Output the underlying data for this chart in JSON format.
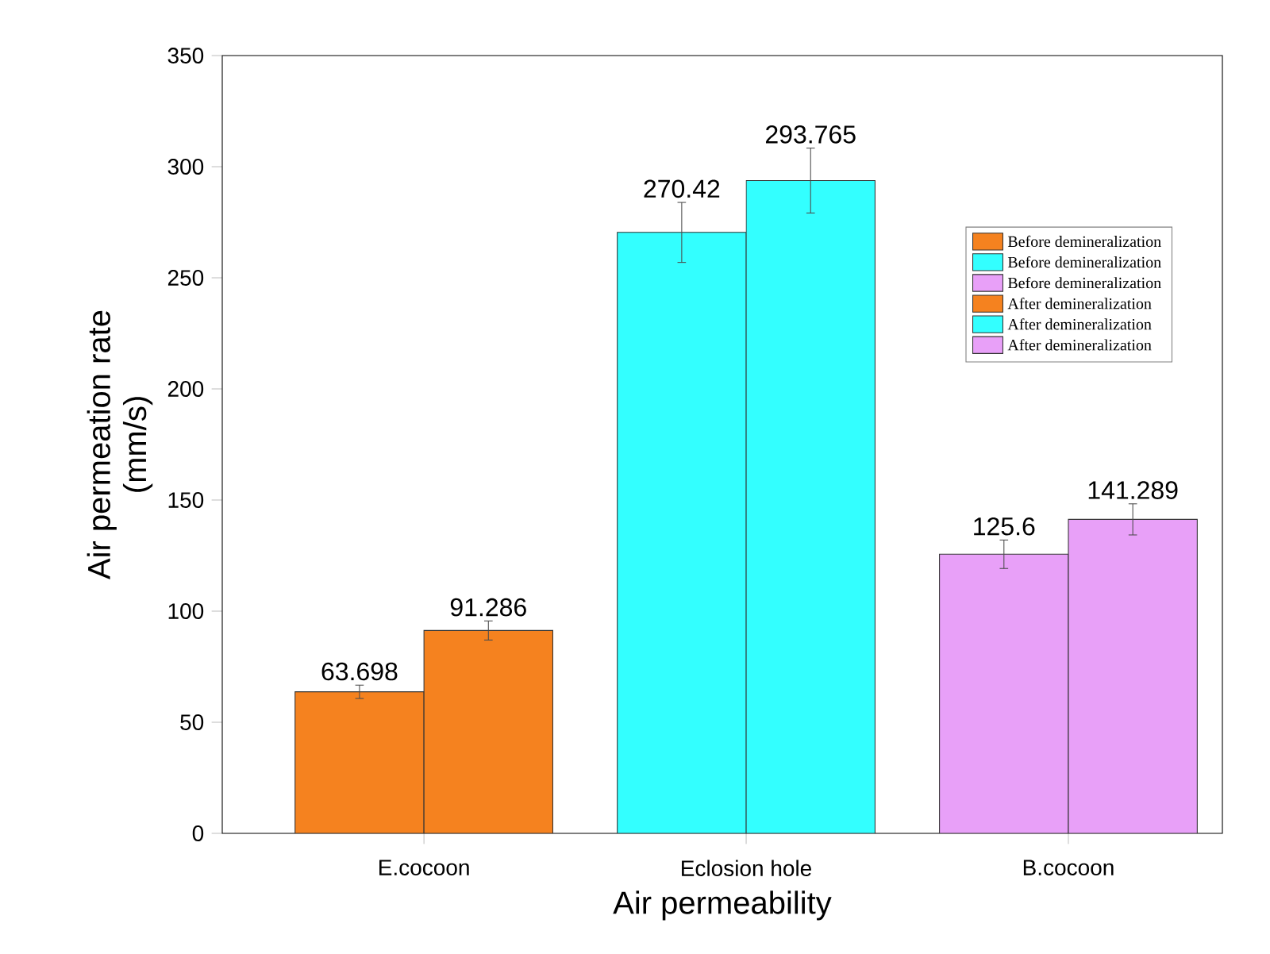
{
  "chart_data": {
    "type": "bar",
    "xlabel": "Air permeability",
    "ylabel": "Air permeation rate\n(mm/s)",
    "categories": [
      "E.cocoon",
      "Eclosion hole",
      "B.cocoon"
    ],
    "series": [
      {
        "name": "Before demineralization",
        "color": "#f5821f",
        "values": [
          63.698,
          null,
          null
        ],
        "errors": [
          3,
          null,
          null
        ]
      },
      {
        "name": "Before demineralization",
        "color": "#33ffff",
        "values": [
          null,
          270.42,
          null
        ],
        "errors": [
          null,
          13.5,
          null
        ]
      },
      {
        "name": "Before demineralization",
        "color": "#e8a0f8",
        "values": [
          null,
          null,
          125.6
        ],
        "errors": [
          null,
          null,
          6.4
        ]
      },
      {
        "name": "After demineralization",
        "color": "#f5821f",
        "values": [
          91.286,
          null,
          null
        ],
        "errors": [
          4.3,
          null,
          null
        ]
      },
      {
        "name": "After demineralization",
        "color": "#33ffff",
        "values": [
          null,
          293.765,
          null
        ],
        "errors": [
          null,
          14.6,
          null
        ]
      },
      {
        "name": "After demineralization",
        "color": "#e8a0f8",
        "values": [
          null,
          null,
          141.289
        ],
        "errors": [
          null,
          null,
          7
        ]
      }
    ],
    "ylim": [
      0,
      350
    ],
    "yticks": [
      0,
      50,
      100,
      150,
      200,
      250,
      300,
      350
    ],
    "data_labels": true,
    "legend": "top right",
    "grid": false
  }
}
